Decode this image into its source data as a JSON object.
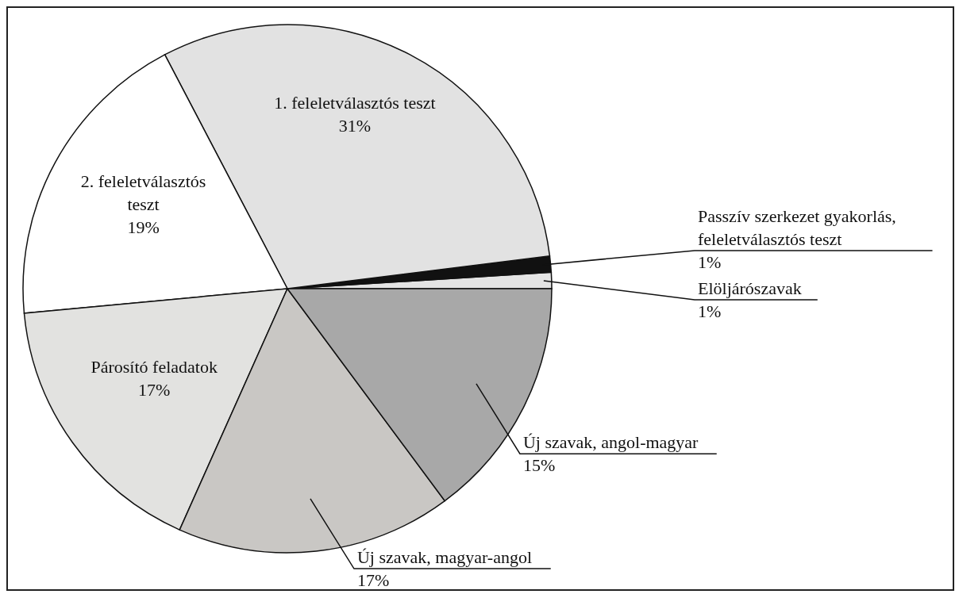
{
  "chart_data": {
    "type": "pie",
    "categories": [
      "Elöljárószavak",
      "Passzív szerkezet gyakorlás, feleletválasztós teszt",
      "1. feleletválasztós teszt",
      "2. feleletválasztós teszt",
      "Párosító feladatok",
      "Új szavak, magyar-angol",
      "Új szavak, angol-magyar"
    ],
    "values": [
      1,
      1,
      31,
      19,
      17,
      17,
      15
    ],
    "value_labels": [
      "1%",
      "1%",
      "31%",
      "19%",
      "17%",
      "17%",
      "15%"
    ],
    "colors": [
      "#e4e4e4",
      "#111111",
      "#e2e2e2",
      "#ffffff",
      "#e2e2e0",
      "#c9c7c4",
      "#a8a8a8"
    ]
  }
}
